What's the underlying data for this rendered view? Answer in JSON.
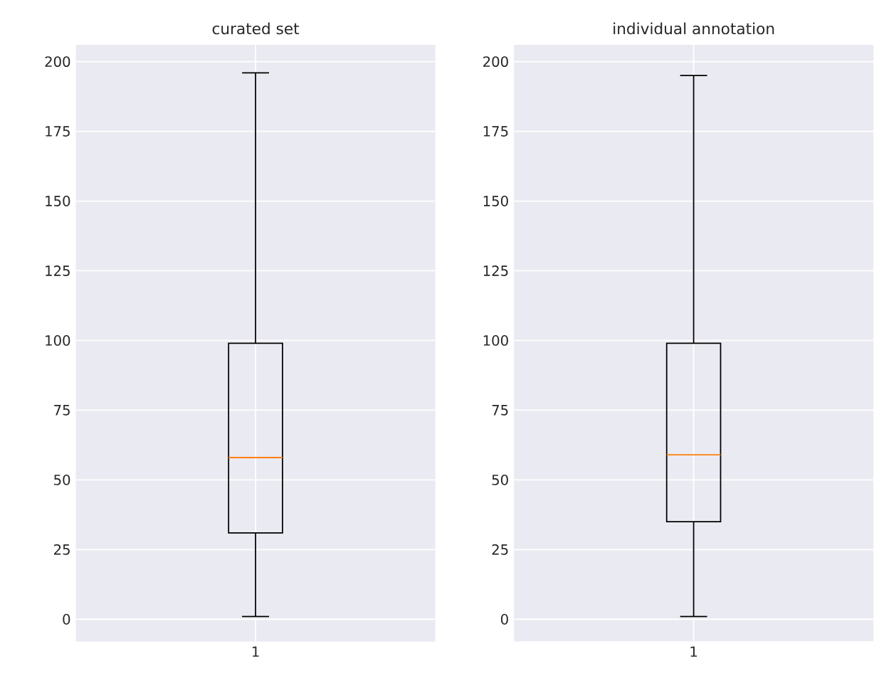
{
  "chart_data": [
    {
      "type": "box",
      "title": "curated set",
      "categories": [
        "1"
      ],
      "boxes": [
        {
          "low": 1,
          "q1": 31,
          "median": 58,
          "q3": 99,
          "high": 196
        }
      ],
      "ylim": [
        -8,
        206
      ],
      "yticks": [
        0,
        25,
        50,
        75,
        100,
        125,
        150,
        175,
        200
      ],
      "grid": true
    },
    {
      "type": "box",
      "title": "individual annotation",
      "categories": [
        "1"
      ],
      "boxes": [
        {
          "low": 1,
          "q1": 35,
          "median": 59,
          "q3": 99,
          "high": 195
        }
      ],
      "ylim": [
        -8,
        206
      ],
      "yticks": [
        0,
        25,
        50,
        75,
        100,
        125,
        150,
        175,
        200
      ],
      "grid": true
    }
  ]
}
